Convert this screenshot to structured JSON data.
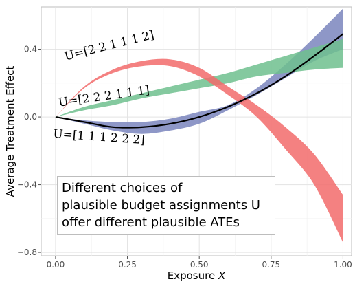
{
  "chart_data": {
    "type": "area",
    "title": "",
    "xlabel": "Exposure",
    "xlabel_var": "X",
    "ylabel": "Average Treatment Effect",
    "xlim": [
      -0.05,
      1.03
    ],
    "ylim": [
      -0.82,
      0.65
    ],
    "x_ticks": [
      0.0,
      0.25,
      0.5,
      0.75,
      1.0
    ],
    "x_tick_labels": [
      "0.00",
      "0.25",
      "0.50",
      "0.75",
      "1.00"
    ],
    "y_ticks": [
      -0.8,
      -0.4,
      0.0,
      0.4
    ],
    "y_tick_labels": [
      "−0.8",
      "−0.4",
      "0.0",
      "0.4"
    ],
    "grid": true,
    "x": [
      0.0,
      0.1,
      0.2,
      0.3,
      0.4,
      0.5,
      0.6,
      0.7,
      0.8,
      0.9,
      1.0
    ],
    "series": [
      {
        "label": "U=[2 2 1 1 1 2]",
        "color": "#f26b6b",
        "lower": [
          0.0,
          0.17,
          0.26,
          0.3,
          0.3,
          0.24,
          0.13,
          0.0,
          -0.19,
          -0.4,
          -0.74
        ],
        "upper": [
          0.0,
          0.18,
          0.28,
          0.33,
          0.34,
          0.29,
          0.18,
          0.07,
          -0.06,
          -0.22,
          -0.46
        ]
      },
      {
        "label": "U=[2 2 2 1 1 1]",
        "color": "#6fbf8e",
        "lower": [
          0.0,
          0.04,
          0.07,
          0.11,
          0.14,
          0.17,
          0.2,
          0.24,
          0.26,
          0.28,
          0.29
        ],
        "upper": [
          0.0,
          0.06,
          0.1,
          0.14,
          0.18,
          0.22,
          0.26,
          0.31,
          0.36,
          0.41,
          0.46
        ]
      },
      {
        "label": "U=[1 1 1 2 2 2]",
        "color": "#7a85bd",
        "lower": [
          0.0,
          -0.04,
          -0.08,
          -0.1,
          -0.08,
          -0.04,
          0.04,
          0.13,
          0.23,
          0.33,
          0.4
        ],
        "upper": [
          0.0,
          -0.02,
          -0.03,
          -0.03,
          -0.01,
          0.03,
          0.07,
          0.17,
          0.31,
          0.47,
          0.64
        ]
      }
    ],
    "black_line": {
      "values": [
        0.0,
        -0.03,
        -0.06,
        -0.06,
        -0.04,
        0.0,
        0.06,
        0.14,
        0.24,
        0.36,
        0.49
      ]
    },
    "annotation": {
      "lines": [
        "Different choices of",
        "plausible budget assignments U",
        "offer different plausible ATEs"
      ]
    }
  }
}
